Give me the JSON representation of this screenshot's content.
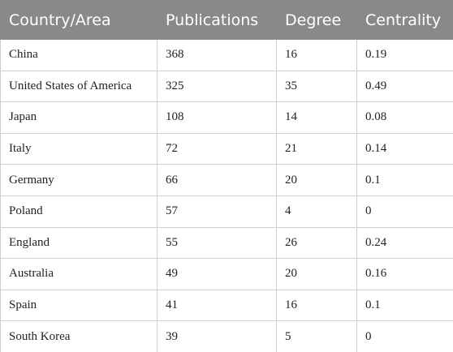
{
  "table": {
    "header": [
      "Country/Area",
      "Publications",
      "Degree",
      "Centrality"
    ],
    "rows": [
      [
        "China",
        "368",
        "16",
        "0.19"
      ],
      [
        "United States of America",
        "325",
        "35",
        "0.49"
      ],
      [
        "Japan",
        "108",
        "14",
        "0.08"
      ],
      [
        "Italy",
        "72",
        "21",
        "0.14"
      ],
      [
        "Germany",
        "66",
        "20",
        "0.1"
      ],
      [
        "Poland",
        "57",
        "4",
        "0"
      ],
      [
        "England",
        "55",
        "26",
        "0.24"
      ],
      [
        "Australia",
        "49",
        "20",
        "0.16"
      ],
      [
        "Spain",
        "41",
        "16",
        "0.1"
      ],
      [
        "South Korea",
        "39",
        "5",
        "0"
      ]
    ]
  }
}
